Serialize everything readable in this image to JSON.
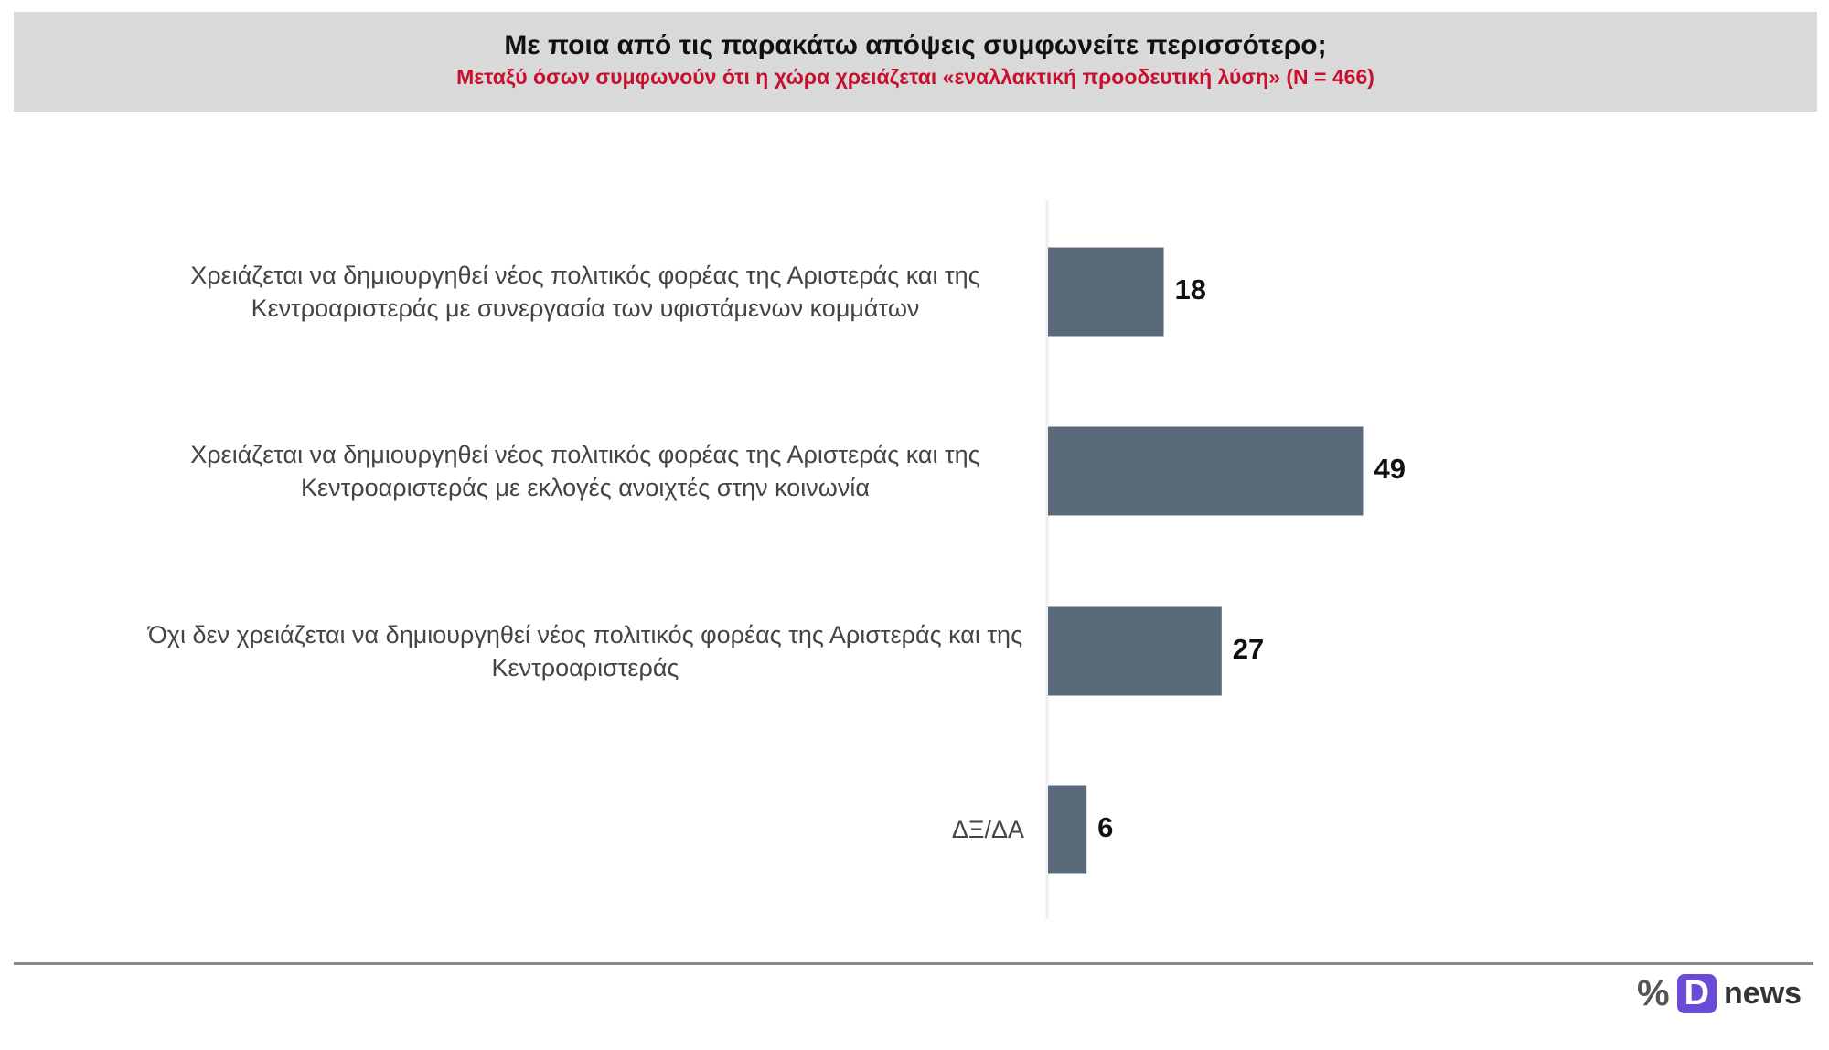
{
  "chart_data": {
    "type": "bar",
    "orientation": "horizontal",
    "title": "Με ποια από τις παρακάτω απόψεις συμφωνείτε περισσότερο;",
    "subtitle": "Μεταξύ όσων συμφωνούν ότι η χώρα χρειάζεται «εναλλακτική προοδευτική λύση» (N = 466)",
    "categories": [
      "Χρειάζεται να δημιουργηθεί νέος πολιτικός φορέας της Αριστεράς και της Κεντροαριστεράς με συνεργασία των υφιστάμενων κομμάτων",
      "Χρειάζεται να δημιουργηθεί νέος πολιτικός φορέας της Αριστεράς και της Κεντροαριστεράς με εκλογές ανοιχτές στην κοινωνία",
      "Όχι δεν χρειάζεται να δημιουργηθεί νέος πολιτικός φορέας της Αριστεράς και της Κεντροαριστεράς",
      "ΔΞ/ΔΑ"
    ],
    "values": [
      18,
      49,
      27,
      6
    ],
    "color": "#5a6a7b",
    "logo": {
      "symbol": "%",
      "mark": "D",
      "text": "news"
    }
  }
}
